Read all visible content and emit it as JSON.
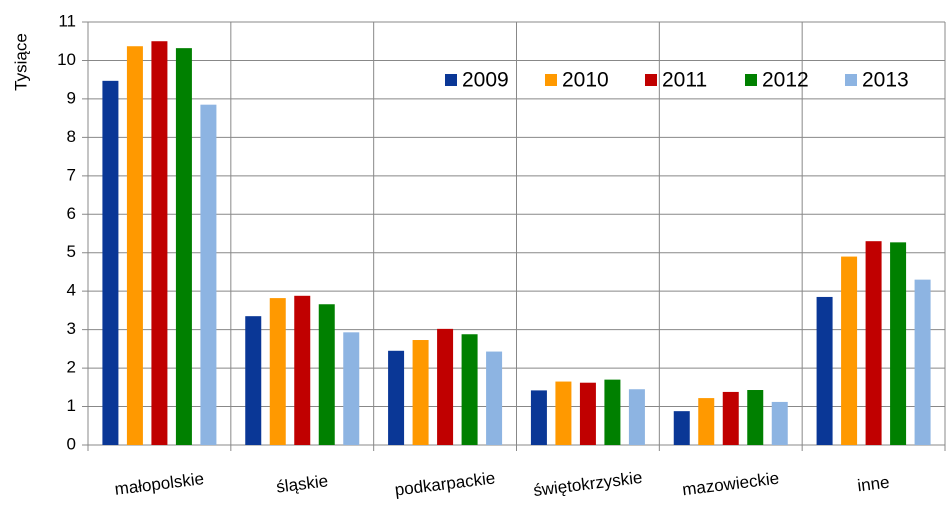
{
  "chart_data": {
    "type": "bar",
    "y_label": "Tysiące",
    "categories": [
      "małopolskie",
      "śląskie",
      "podkarpackie",
      "świętokrzyskie",
      "mazowieckie",
      "inne"
    ],
    "series": [
      {
        "name": "2009",
        "color": "#0a3796",
        "values": [
          9.47,
          3.35,
          2.45,
          1.42,
          0.88,
          3.85
        ]
      },
      {
        "name": "2010",
        "color": "#ff9900",
        "values": [
          10.37,
          3.82,
          2.73,
          1.65,
          1.22,
          4.9
        ]
      },
      {
        "name": "2011",
        "color": "#c00000",
        "values": [
          10.5,
          3.88,
          3.02,
          1.62,
          1.38,
          5.3
        ]
      },
      {
        "name": "2012",
        "color": "#008000",
        "values": [
          10.32,
          3.66,
          2.88,
          1.7,
          1.43,
          5.27
        ]
      },
      {
        "name": "2013",
        "color": "#8db4e2",
        "values": [
          8.85,
          2.93,
          2.43,
          1.45,
          1.12,
          4.3
        ]
      }
    ],
    "ylim": [
      0,
      11
    ],
    "yticks": [
      0,
      1,
      2,
      3,
      4,
      5,
      6,
      7,
      8,
      9,
      10,
      11
    ],
    "grid": true,
    "legend": "top-right"
  }
}
